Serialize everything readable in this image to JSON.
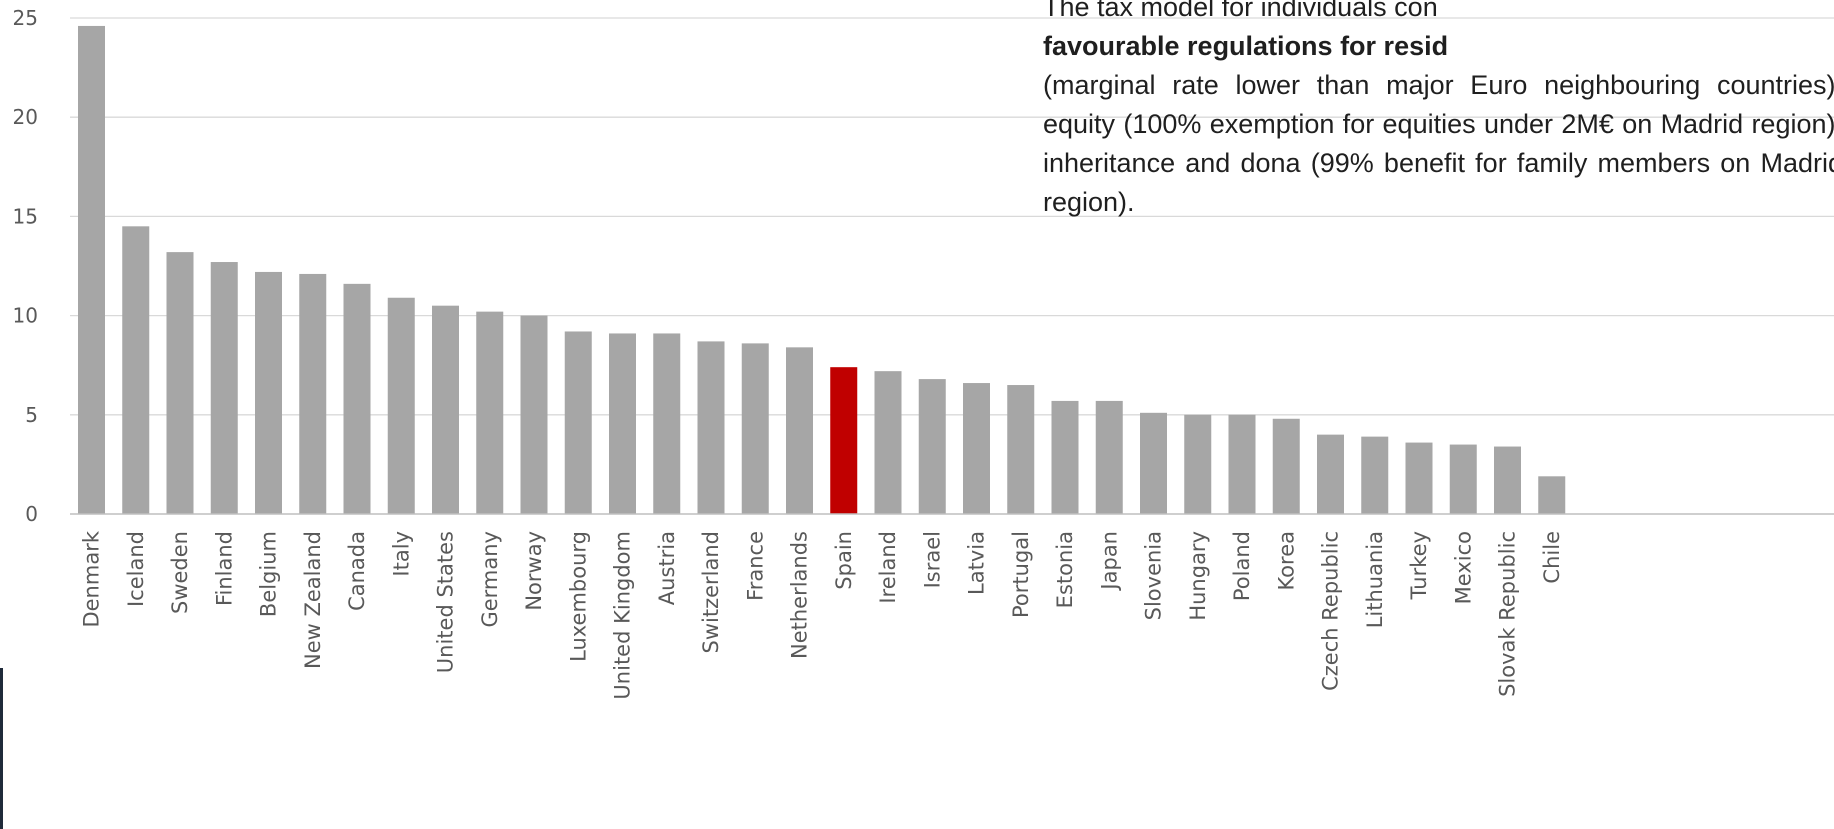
{
  "chart_data": {
    "type": "bar",
    "categories": [
      "Denmark",
      "Iceland",
      "Sweden",
      "Finland",
      "Belgium",
      "New Zealand",
      "Canada",
      "Italy",
      "United States",
      "Germany",
      "Norway",
      "Luxembourg",
      "United Kingdom",
      "Austria",
      "Switzerland",
      "France",
      "Netherlands",
      "Spain",
      "Ireland",
      "Israel",
      "Latvia",
      "Portugal",
      "Estonia",
      "Japan",
      "Slovenia",
      "Hungary",
      "Poland",
      "Korea",
      "Czech Republic",
      "Lithuania",
      "Turkey",
      "Mexico",
      "Slovak Republic",
      "Chile"
    ],
    "values": [
      24.6,
      14.5,
      13.2,
      12.7,
      12.2,
      12.1,
      11.6,
      10.9,
      10.5,
      10.2,
      10.0,
      9.2,
      9.1,
      9.1,
      8.7,
      8.6,
      8.4,
      7.4,
      7.2,
      6.8,
      6.6,
      6.5,
      5.7,
      5.7,
      5.1,
      5.0,
      5.0,
      4.8,
      4.0,
      3.9,
      3.6,
      3.5,
      3.4,
      1.9
    ],
    "yticks": [
      "0",
      "5",
      "10",
      "15",
      "20",
      "25"
    ],
    "ylim": [
      0,
      25
    ],
    "grid": true,
    "highlight": "Spain",
    "colors": {
      "bar": "#a6a6a6",
      "highlight": "#c00000",
      "grid": "#d9d9d9",
      "axis": "#bfbfbf"
    }
  },
  "note": {
    "line1": "The tax model for individuals con",
    "bold": "favourable regulations for resid",
    "rest": "(marginal rate lower than major Euro neighbouring countries), equity (100% exemption for equities under 2M€ on Madrid region), inheritance and dona (99% benefit for family members on Madrid region)."
  }
}
